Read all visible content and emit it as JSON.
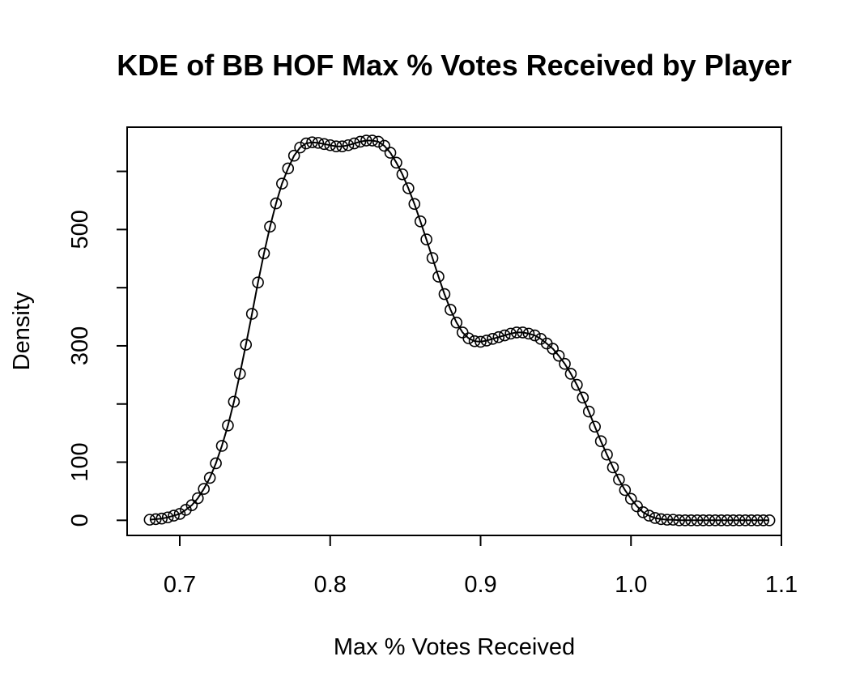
{
  "chart_data": {
    "type": "line",
    "title": "KDE of BB HOF Max % Votes Received by Player",
    "xlabel": "Max % Votes Received",
    "ylabel": "Density",
    "xlim": [
      0.665,
      1.1
    ],
    "ylim": [
      -26,
      676
    ],
    "x_ticks": [
      0.7,
      0.8,
      0.9,
      1.0,
      1.1
    ],
    "x_tick_labels": [
      "0.7",
      "0.8",
      "0.9",
      "1.0",
      "1.1"
    ],
    "y_ticks": [
      0,
      100,
      300,
      500
    ],
    "y_tick_labels": [
      "0",
      "100",
      "300",
      "500"
    ],
    "line_color": "#000000",
    "marker": "open-circle",
    "series": [
      {
        "name": "density",
        "x": [
          0.68,
          0.684,
          0.688,
          0.692,
          0.696,
          0.7,
          0.704,
          0.708,
          0.712,
          0.716,
          0.72,
          0.724,
          0.728,
          0.732,
          0.736,
          0.74,
          0.744,
          0.748,
          0.752,
          0.756,
          0.76,
          0.764,
          0.768,
          0.772,
          0.776,
          0.78,
          0.784,
          0.788,
          0.792,
          0.796,
          0.8,
          0.804,
          0.808,
          0.812,
          0.816,
          0.82,
          0.824,
          0.828,
          0.832,
          0.836,
          0.84,
          0.844,
          0.848,
          0.852,
          0.856,
          0.86,
          0.864,
          0.868,
          0.872,
          0.876,
          0.88,
          0.884,
          0.888,
          0.892,
          0.896,
          0.9,
          0.904,
          0.908,
          0.912,
          0.916,
          0.92,
          0.924,
          0.928,
          0.932,
          0.936,
          0.94,
          0.944,
          0.948,
          0.952,
          0.956,
          0.96,
          0.964,
          0.968,
          0.972,
          0.976,
          0.98,
          0.984,
          0.988,
          0.992,
          0.996,
          1.0,
          1.004,
          1.008,
          1.012,
          1.016,
          1.02,
          1.024,
          1.028,
          1.032,
          1.036,
          1.04,
          1.044,
          1.048,
          1.052,
          1.056,
          1.06,
          1.064,
          1.068,
          1.072,
          1.076,
          1.08,
          1.084,
          1.088,
          1.092
        ],
        "y": [
          1,
          2,
          3,
          5,
          8,
          11,
          18,
          26,
          38,
          54,
          73,
          98,
          128,
          163,
          204,
          252,
          302,
          355,
          409,
          459,
          505,
          545,
          579,
          605,
          627,
          641,
          648,
          650,
          649,
          647,
          645,
          643,
          643,
          645,
          648,
          651,
          653,
          653,
          651,
          644,
          632,
          615,
          595,
          571,
          544,
          514,
          483,
          451,
          419,
          389,
          362,
          340,
          323,
          313,
          308,
          307,
          309,
          312,
          315,
          318,
          321,
          323,
          323,
          321,
          318,
          312,
          304,
          295,
          283,
          269,
          252,
          233,
          211,
          187,
          161,
          136,
          113,
          91,
          70,
          52,
          37,
          24,
          14,
          8,
          4,
          2,
          1,
          1,
          0,
          0,
          0,
          0,
          0,
          0,
          0,
          0,
          0,
          0,
          0,
          0,
          0,
          0,
          0,
          0
        ]
      }
    ]
  }
}
